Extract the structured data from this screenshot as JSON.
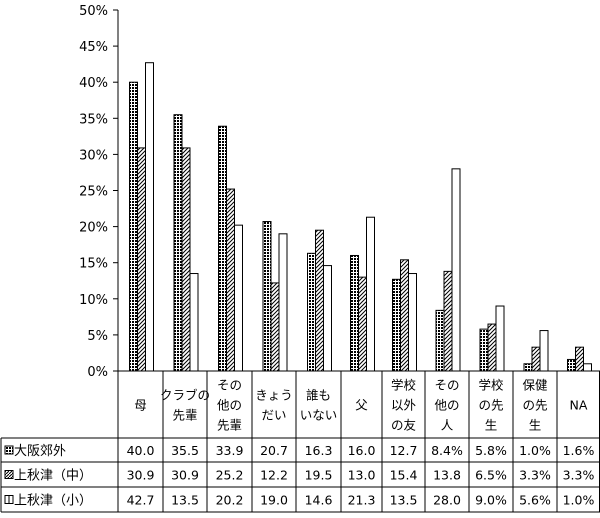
{
  "chart_data": {
    "type": "bar",
    "title": "",
    "xlabel": "",
    "ylabel": "",
    "ylim": [
      0,
      50
    ],
    "y_ticks": [
      "0%",
      "5%",
      "10%",
      "15%",
      "20%",
      "25%",
      "30%",
      "35%",
      "40%",
      "45%",
      "50%"
    ],
    "grid": false,
    "legend": "data table rows below chart",
    "categories": [
      [
        "母"
      ],
      [
        "クラブの",
        "先輩"
      ],
      [
        "その",
        "他の",
        "先輩"
      ],
      [
        "きょう",
        "だい"
      ],
      [
        "誰も",
        "いない"
      ],
      [
        "父"
      ],
      [
        "学校",
        "以外",
        "の友"
      ],
      [
        "その",
        "他の",
        "人"
      ],
      [
        "学校",
        "の先",
        "生"
      ],
      [
        "保健",
        "の先",
        "生"
      ],
      [
        "NA"
      ]
    ],
    "category_labels_vertical": [
      true,
      true,
      true,
      true,
      true,
      false,
      false,
      false,
      false,
      false,
      false
    ],
    "series": [
      {
        "name": "大阪郊外",
        "pattern": "dots",
        "values": [
          40.0,
          35.5,
          33.9,
          20.7,
          16.3,
          16.0,
          12.7,
          8.4,
          5.8,
          1.0,
          1.6
        ],
        "labels": [
          "40.0",
          "35.5",
          "33.9",
          "20.7",
          "16.3",
          "16.0",
          "12.7",
          "8.4%",
          "5.8%",
          "1.0%",
          "1.6%"
        ]
      },
      {
        "name": "上秋津（中）",
        "pattern": "diagonal-hatch",
        "values": [
          30.9,
          30.9,
          25.2,
          12.2,
          19.5,
          13.0,
          15.4,
          13.8,
          6.5,
          3.3,
          3.3
        ],
        "labels": [
          "30.9",
          "30.9",
          "25.2",
          "12.2",
          "19.5",
          "13.0",
          "15.4",
          "13.8",
          "6.5%",
          "3.3%",
          "3.3%"
        ]
      },
      {
        "name": "上秋津（小）",
        "pattern": "open",
        "values": [
          42.7,
          13.5,
          20.2,
          19.0,
          14.6,
          21.3,
          13.5,
          28.0,
          9.0,
          5.6,
          1.0
        ],
        "labels": [
          "42.7",
          "13.5",
          "20.2",
          "19.0",
          "14.6",
          "21.3",
          "13.5",
          "28.0",
          "9.0%",
          "5.6%",
          "1.0%"
        ]
      }
    ]
  }
}
